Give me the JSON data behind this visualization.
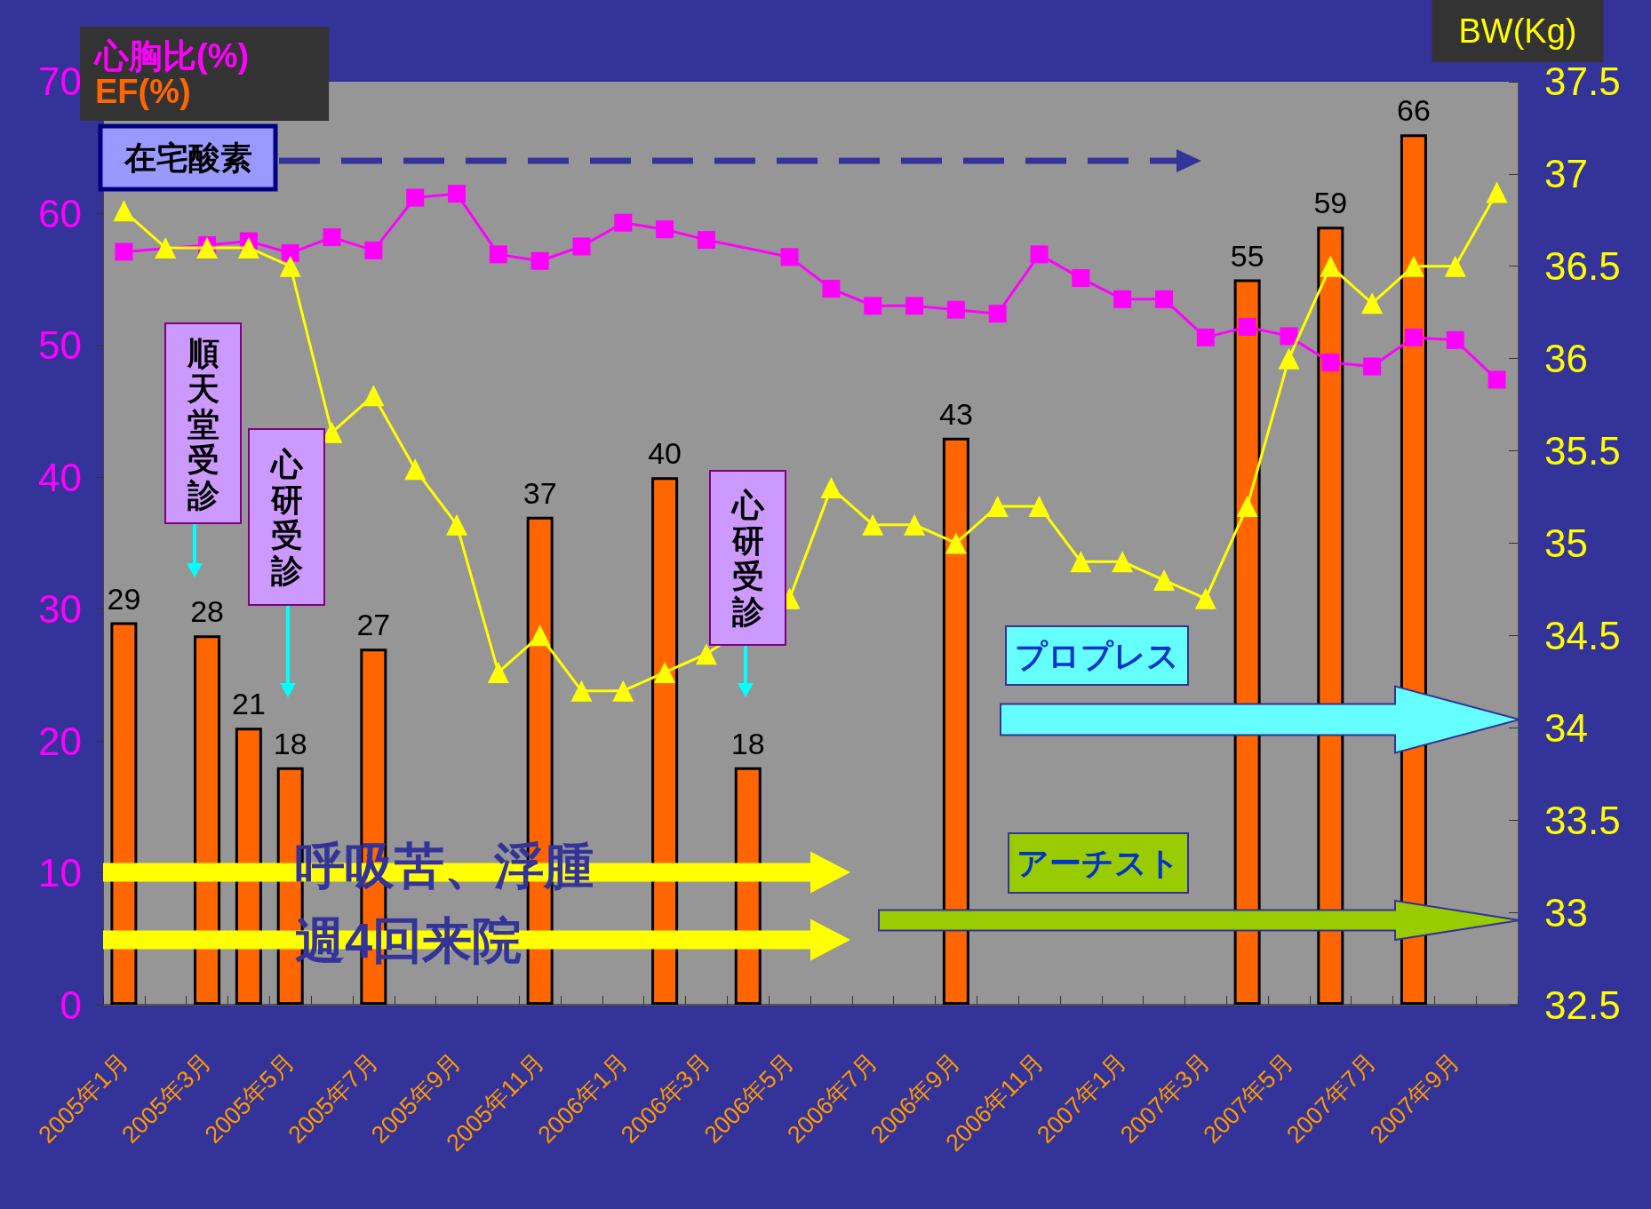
{
  "chart_data": {
    "type": "bar",
    "categories": [
      "2005年1月",
      null,
      "2005年3月",
      null,
      "2005年5月",
      null,
      "2005年7月",
      null,
      "2005年9月",
      null,
      "2005年11月",
      null,
      "2006年1月",
      null,
      "2006年3月",
      null,
      "2006年5月",
      null,
      "2006年7月",
      null,
      "2006年9月",
      null,
      "2006年11月",
      null,
      "2007年1月",
      null,
      "2007年3月",
      null,
      "2007年5月",
      null,
      "2007年7月",
      null,
      "2007年9月",
      null
    ],
    "series": [
      {
        "name": "心胸比(%)",
        "type": "line",
        "marker": "square",
        "color": "#ff00ff",
        "values": [
          57.1,
          null,
          57.6,
          57.9,
          57.0,
          58.2,
          57.2,
          61.2,
          61.5,
          56.9,
          56.4,
          57.5,
          59.3,
          58.8,
          58.0,
          null,
          56.7,
          54.3,
          53.0,
          53.0,
          52.7,
          52.4,
          56.9,
          55.1,
          53.5,
          53.5,
          50.6,
          51.4,
          50.7,
          48.7,
          48.4,
          50.6,
          50.4,
          47.4
        ]
      },
      {
        "name": "EF(%)",
        "color": "#ff6600",
        "values": [
          29,
          null,
          28,
          21,
          18,
          null,
          27,
          null,
          null,
          null,
          37,
          null,
          null,
          40,
          null,
          18,
          null,
          null,
          null,
          null,
          43,
          null,
          null,
          null,
          null,
          null,
          null,
          55,
          null,
          59,
          null,
          66,
          null,
          null
        ],
        "value_labels": [
          "29",
          null,
          "28",
          "21",
          "18",
          null,
          "27",
          null,
          null,
          null,
          "37",
          null,
          null,
          "40",
          null,
          "18",
          null,
          null,
          null,
          null,
          "43",
          null,
          null,
          null,
          null,
          null,
          null,
          "55",
          null,
          "59",
          null,
          "66",
          null,
          null
        ]
      },
      {
        "type": "line",
        "axis": "y2",
        "marker": "triangle",
        "color": "#ffff00",
        "values": [
          36.8,
          36.6,
          36.6,
          36.6,
          36.5,
          35.6,
          35.8,
          35.4,
          35.1,
          34.3,
          34.5,
          34.2,
          34.2,
          34.3,
          34.4,
          null,
          34.7,
          35.3,
          35.1,
          35.1,
          35.0,
          35.2,
          35.2,
          34.9,
          34.9,
          34.8,
          34.7,
          35.2,
          36.0,
          36.5,
          36.3,
          36.5,
          36.5,
          36.9
        ]
      }
    ],
    "ylim": [
      0,
      70
    ],
    "yticks": [
      0,
      10,
      20,
      30,
      40,
      50,
      60,
      70
    ],
    "y2lim": [
      32.5,
      37.5
    ],
    "y2ticks": [
      32.5,
      33,
      33.5,
      34,
      34.5,
      35,
      35.5,
      36,
      36.5,
      37,
      37.5
    ],
    "y2label": "BW(Kg)",
    "legend": "top left",
    "annotations": [
      "在宅酸素",
      "順天堂受診",
      "心研受診",
      "心研受診",
      "プロプレス",
      "アーチスト",
      "呼吸苦、浮腫",
      "週4回来院"
    ]
  }
}
